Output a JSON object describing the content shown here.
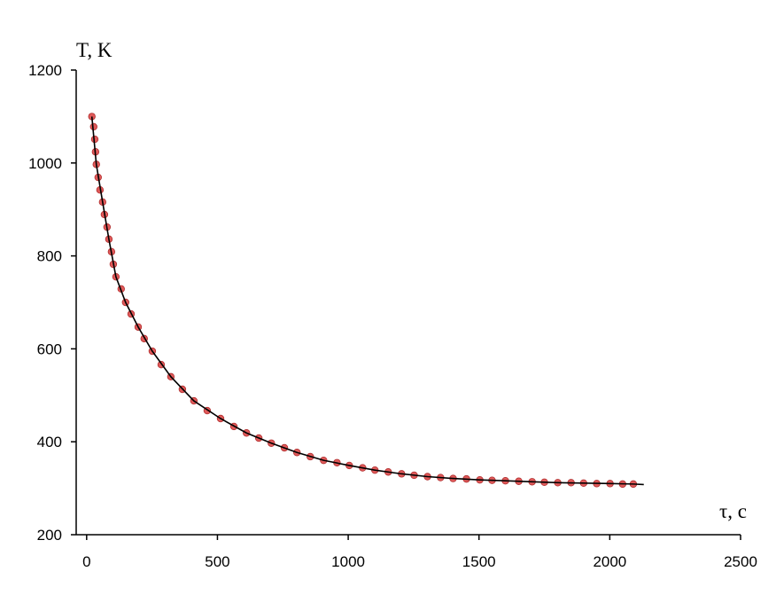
{
  "chart_data": {
    "type": "scatter",
    "ylabel": "T, K",
    "xlabel": "τ, с",
    "xlim": [
      -40,
      2500
    ],
    "xticks": [
      0,
      500,
      1000,
      1500,
      2000,
      2500
    ],
    "ylim": [
      200,
      1200
    ],
    "yticks": [
      200,
      400,
      600,
      800,
      1000,
      1200
    ],
    "series": [
      {
        "mode": "markers",
        "color": "#e05a5a",
        "x": [
          20,
          27,
          31,
          34,
          37,
          44,
          51,
          61,
          68,
          78,
          85,
          95,
          102,
          112,
          132,
          149,
          170,
          197,
          220,
          251,
          285,
          322,
          366,
          410,
          461,
          512,
          563,
          611,
          658,
          706,
          756,
          804,
          855,
          906,
          957,
          1004,
          1055,
          1102,
          1153,
          1204,
          1252,
          1303,
          1353,
          1401,
          1452,
          1503,
          1550,
          1601,
          1652,
          1703,
          1750,
          1801,
          1852,
          1900,
          1950,
          2001,
          2049,
          2090
        ],
        "values": [
          1100,
          1078,
          1051,
          1024,
          997,
          969,
          942,
          916,
          889,
          862,
          836,
          809,
          782,
          755,
          729,
          700,
          675,
          647,
          622,
          595,
          566,
          540,
          513,
          488,
          467,
          450,
          433,
          419,
          408,
          397,
          387,
          377,
          368,
          360,
          355,
          349,
          344,
          339,
          335,
          331,
          328,
          325,
          323,
          321,
          320,
          318,
          317,
          316,
          315,
          314,
          313,
          312,
          312,
          311,
          310,
          310,
          309,
          309
        ]
      },
      {
        "mode": "line",
        "color": "#000000",
        "x": [
          20,
          37,
          61,
          85,
          112,
          149,
          197,
          251,
          322,
          410,
          512,
          611,
          706,
          804,
          906,
          1004,
          1102,
          1204,
          1303,
          1401,
          1503,
          1601,
          1703,
          1801,
          1900,
          2001,
          2090,
          2130
        ],
        "values": [
          1100,
          997,
          916,
          836,
          755,
          700,
          647,
          595,
          540,
          488,
          450,
          419,
          397,
          377,
          360,
          349,
          339,
          331,
          325,
          321,
          318,
          316,
          314,
          312,
          311,
          310,
          309,
          308
        ]
      }
    ]
  }
}
